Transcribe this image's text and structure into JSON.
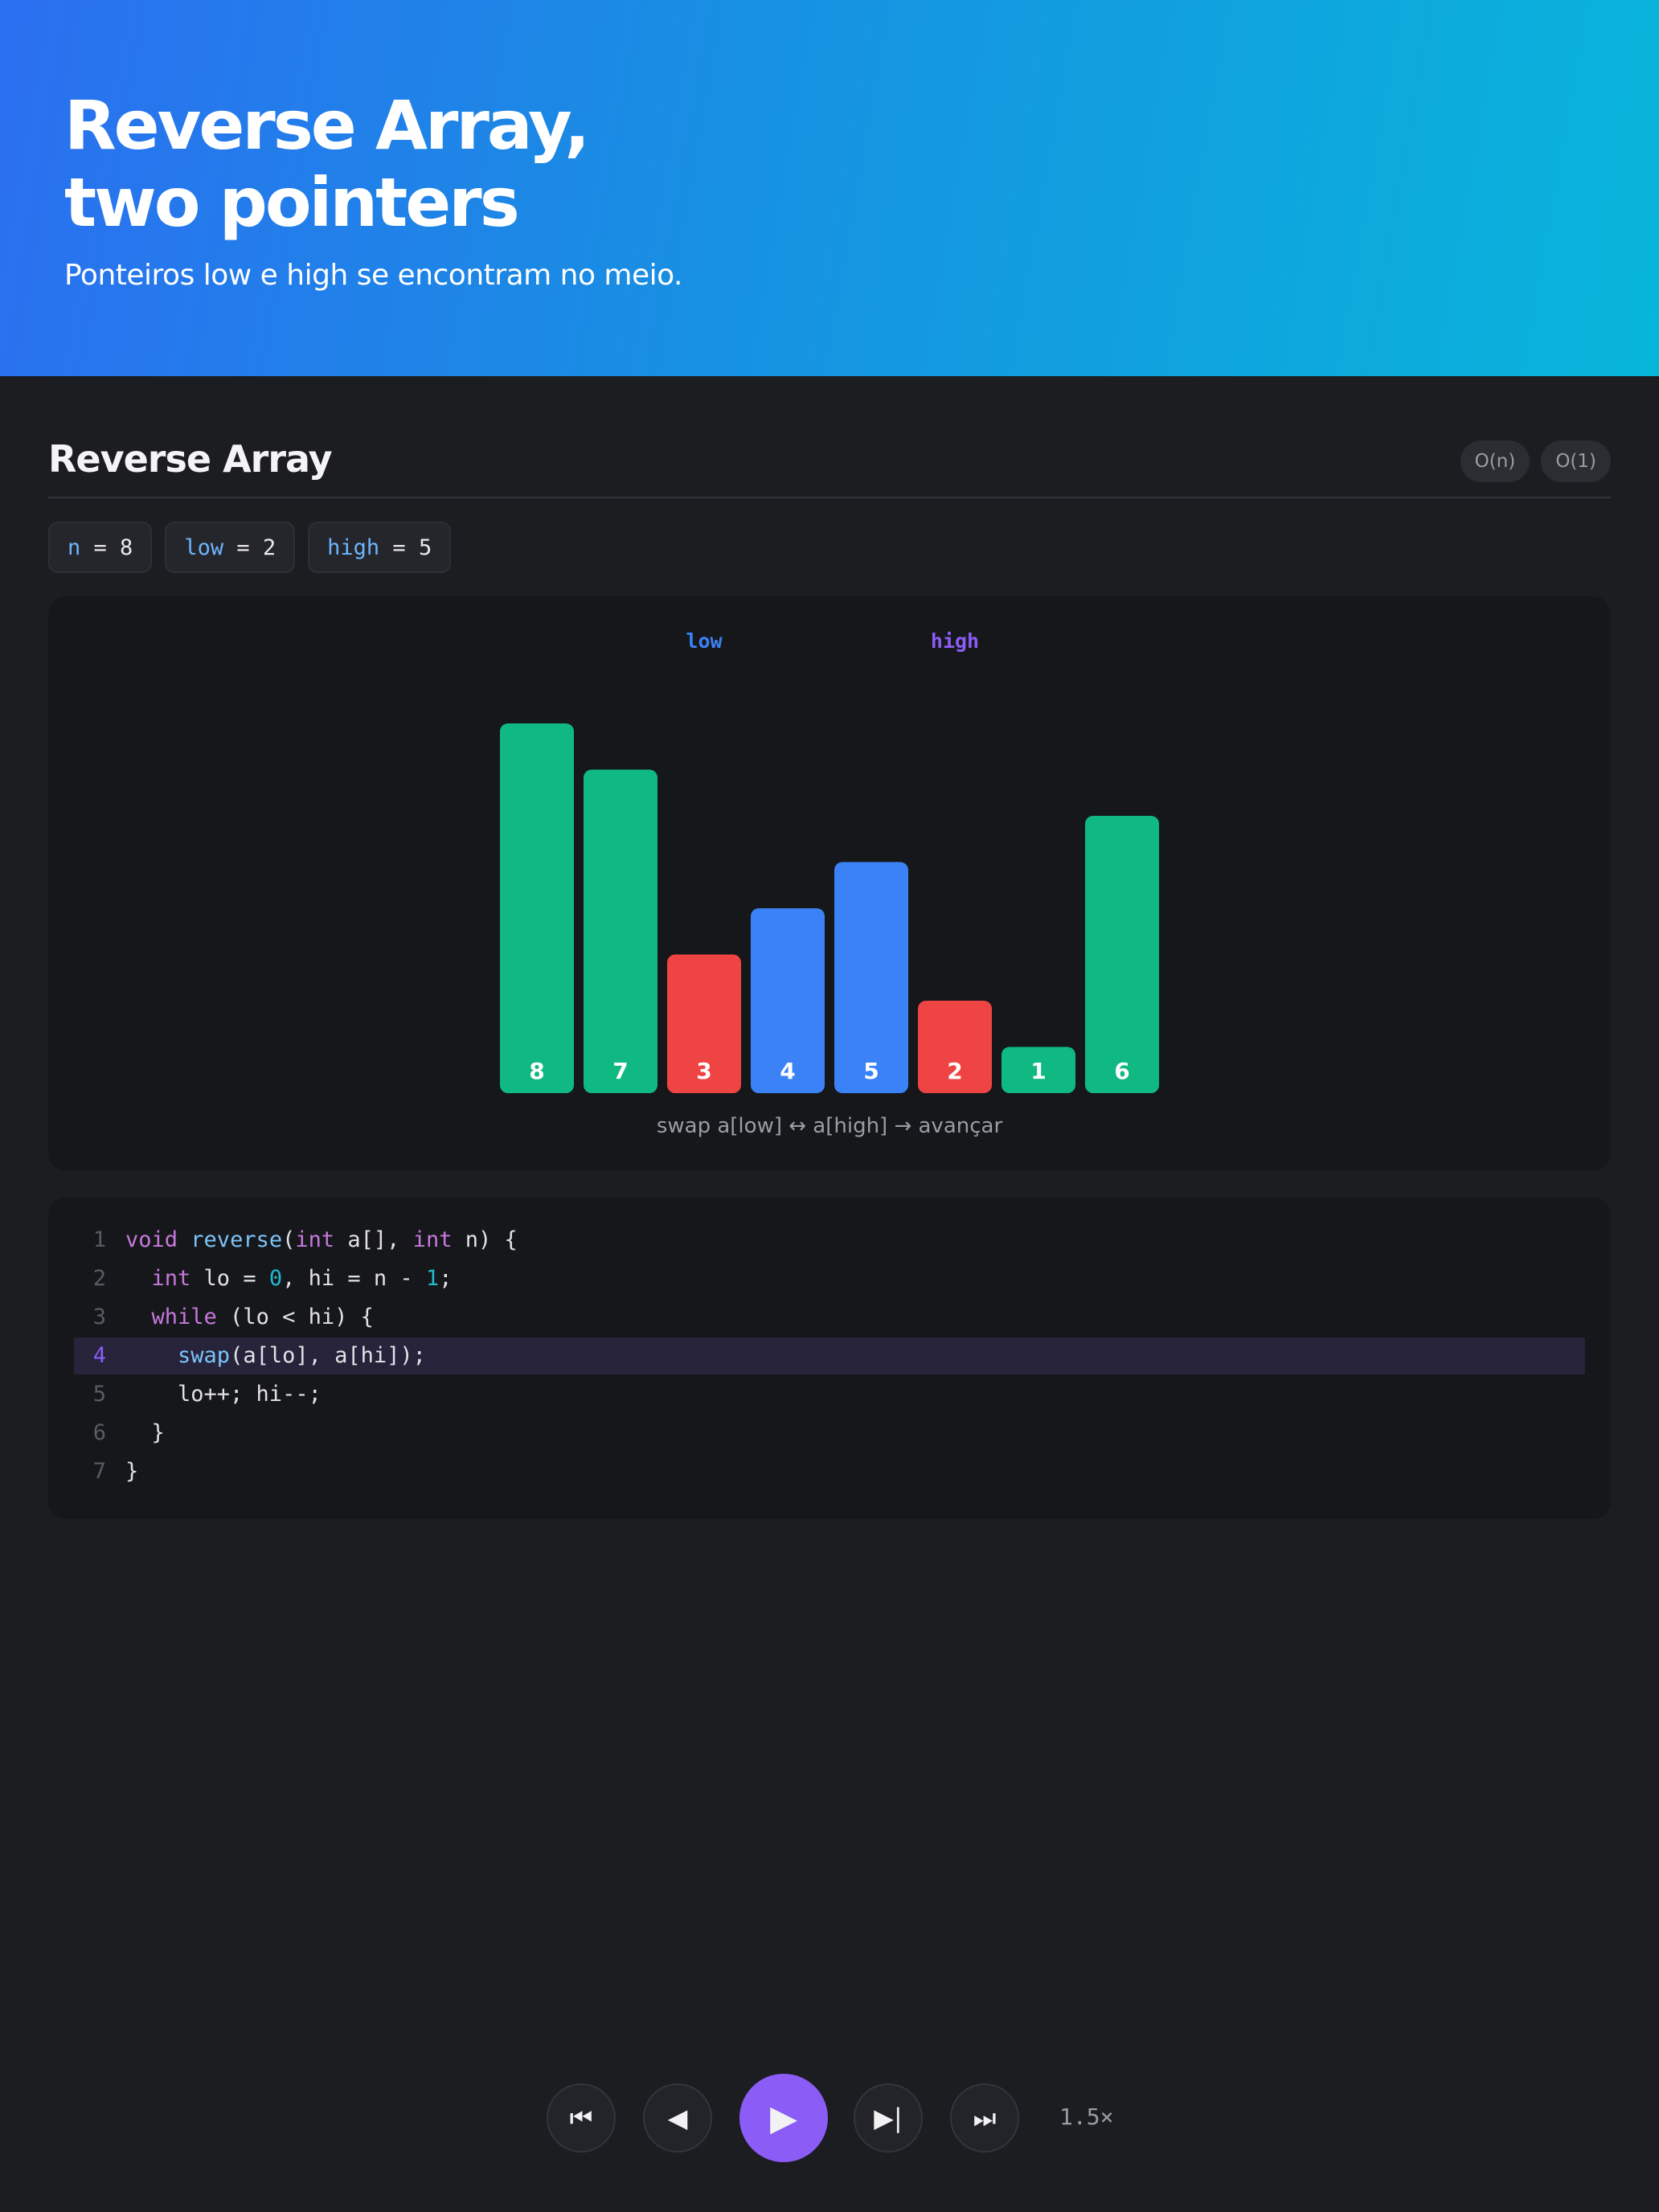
{
  "hero": {
    "title_line1": "Reverse Array,",
    "title_line2": "two pointers",
    "subtitle": "Ponteiros low e high se encontram no meio."
  },
  "section": {
    "title": "Reverse Array",
    "badges": [
      "O(n)",
      "O(1)"
    ]
  },
  "variables": [
    {
      "name": "n",
      "value": "8"
    },
    {
      "name": "low",
      "value": "2"
    },
    {
      "name": "high",
      "value": "5"
    }
  ],
  "chart_data": {
    "type": "bar",
    "values": [
      8,
      7,
      3,
      4,
      5,
      2,
      1,
      6
    ],
    "bar_states": [
      "done",
      "done",
      "compare",
      "pointer",
      "pointer",
      "compare",
      "done",
      "done"
    ],
    "pointers": [
      {
        "label": "low",
        "index": 2,
        "color": "#3b82f6"
      },
      {
        "label": "high",
        "index": 5,
        "color": "#8b5cf6"
      }
    ],
    "state_colors": {
      "done": "#10b981",
      "compare": "#ef4444",
      "pointer": "#3b82f6"
    },
    "caption": "swap a[low] ↔ a[high] → avançar"
  },
  "code": {
    "active_line": 4,
    "lines": [
      [
        {
          "t": "void",
          "c": "kw"
        },
        {
          "t": " "
        },
        {
          "t": "reverse",
          "c": "fn"
        },
        {
          "t": "("
        },
        {
          "t": "int",
          "c": "kw"
        },
        {
          "t": " a[], "
        },
        {
          "t": "int",
          "c": "kw"
        },
        {
          "t": " n) {"
        }
      ],
      [
        {
          "t": "  "
        },
        {
          "t": "int",
          "c": "kw"
        },
        {
          "t": " lo = "
        },
        {
          "t": "0",
          "c": "num"
        },
        {
          "t": ", hi = n - "
        },
        {
          "t": "1",
          "c": "num"
        },
        {
          "t": ";"
        }
      ],
      [
        {
          "t": "  "
        },
        {
          "t": "while",
          "c": "kw"
        },
        {
          "t": " (lo < hi) {"
        }
      ],
      [
        {
          "t": "    "
        },
        {
          "t": "swap",
          "c": "fn"
        },
        {
          "t": "(a[lo], a[hi]);"
        }
      ],
      [
        {
          "t": "    lo++; hi--;"
        }
      ],
      [
        {
          "t": "  }"
        }
      ],
      [
        {
          "t": "}"
        }
      ]
    ]
  },
  "controls": {
    "buttons": [
      {
        "name": "first-step-icon",
        "glyph": "⏮"
      },
      {
        "name": "prev-step-icon",
        "glyph": "◀"
      },
      {
        "name": "play-icon",
        "glyph": "▶"
      },
      {
        "name": "next-step-icon",
        "glyph": "▶|"
      },
      {
        "name": "last-step-icon",
        "glyph": "⏭"
      }
    ],
    "speed": "1.5×",
    "accent": "#8b5cf6"
  }
}
